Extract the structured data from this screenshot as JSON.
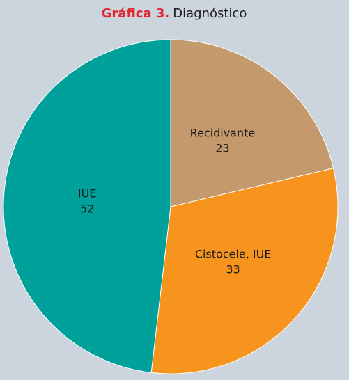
{
  "chart_data": {
    "type": "pie",
    "title_prefix": "Gráfica 3.",
    "title": "Diagnóstico",
    "categories": [
      "Recidivante",
      "Cistocele, IUE",
      "IUE"
    ],
    "values": [
      23,
      33,
      52
    ],
    "colors": [
      "#c49a6c",
      "#f7941d",
      "#00a19a"
    ]
  }
}
